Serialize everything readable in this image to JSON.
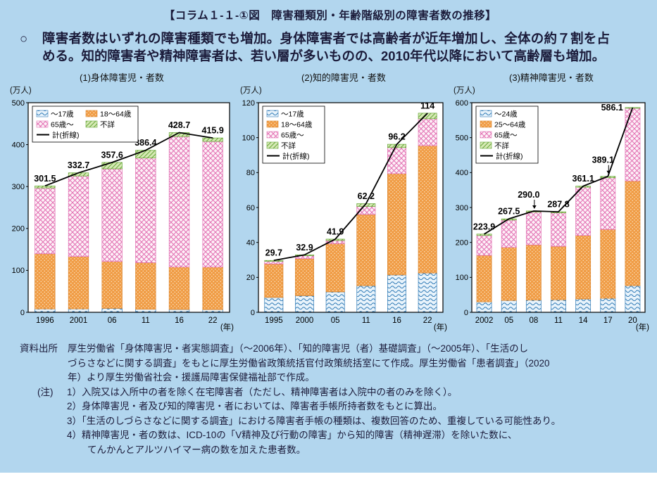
{
  "header": {
    "title": "【コラム１-１-①図　障害種類別・年齢階級別の障害者数の推移】"
  },
  "summary": {
    "bullet": "○",
    "text": "障害者数はいずれの障害種類でも増加。身体障害者では高齢者が近年増加し、全体の約７割を占める。知的障害者や精神障害者は、若い層が多いものの、2010年代以降において高齢層も増加。"
  },
  "palette": {
    "background": "#b2d6ee",
    "text": "#1b1b3a",
    "wave_bg": "#e8f3fb",
    "wave_fg": "#2f7ab6",
    "adult_bg": "#f09c45",
    "adult_fg": "#fbdfbb",
    "adult_edge": "#d9832a",
    "senior_bg": "#fdf1f8",
    "senior_fg": "#e26fb2",
    "unknown_bg": "#d6e9b5",
    "unknown_fg": "#66a738",
    "total_line": "#000000"
  },
  "chart_data": [
    {
      "type": "stacked-bar-line",
      "title": "(1)身体障害児・者数",
      "unit_label": "(万人)",
      "year_label": "(年)",
      "categories": [
        "1996",
        "2001",
        "06",
        "11",
        "16",
        "22"
      ],
      "ylim": [
        0,
        500
      ],
      "ytick_step": 100,
      "legend_columns": 2,
      "series": [
        {
          "name": "～17歳",
          "pattern": "wave",
          "values": [
            8.1,
            8.2,
            9.3,
            7.3,
            6.8,
            6.5
          ]
        },
        {
          "name": "18～64歳",
          "pattern": "dots",
          "values": [
            131.5,
            124.8,
            111.9,
            111.1,
            101.3,
            101.4
          ]
        },
        {
          "name": "65歳～",
          "pattern": "check",
          "values": [
            157.0,
            192.2,
            221.1,
            249.6,
            311.2,
            299.7
          ]
        },
        {
          "name": "不詳",
          "pattern": "hatch",
          "values": [
            4.9,
            7.5,
            15.3,
            18.4,
            9.4,
            8.3
          ]
        }
      ],
      "line": {
        "name": "計(折線)",
        "values": [
          301.5,
          332.7,
          357.6,
          386.4,
          428.7,
          415.9
        ],
        "labels": [
          "301.5",
          "332.7",
          "357.6",
          "386.4",
          "428.7",
          "415.9"
        ]
      }
    },
    {
      "type": "stacked-bar-line",
      "title": "(2)知的障害児・者数",
      "unit_label": "(万人)",
      "year_label": "(年)",
      "categories": [
        "1995",
        "2000",
        "05",
        "11",
        "16",
        "22"
      ],
      "ylim": [
        0,
        120
      ],
      "ytick_step": 20,
      "legend_columns": 1,
      "series": [
        {
          "name": "～17歳",
          "pattern": "wave",
          "values": [
            8.5,
            9.5,
            11.7,
            15.2,
            21.4,
            22.5
          ]
        },
        {
          "name": "18～64歳",
          "pattern": "dots",
          "values": [
            19.2,
            21.2,
            27.6,
            40.8,
            58.0,
            72.9
          ]
        },
        {
          "name": "65歳～",
          "pattern": "check",
          "values": [
            1.5,
            1.7,
            1.8,
            4.6,
            14.9,
            15.4
          ]
        },
        {
          "name": "不詳",
          "pattern": "hatch",
          "values": [
            0.5,
            0.5,
            0.8,
            1.6,
            1.9,
            3.2
          ]
        }
      ],
      "line": {
        "name": "計(折線)",
        "values": [
          29.7,
          32.9,
          41.9,
          62.2,
          96.2,
          114.0
        ],
        "labels": [
          "29.7",
          "32.9",
          "41.9",
          "62.2",
          "96.2",
          "114"
        ]
      }
    },
    {
      "type": "stacked-bar-line",
      "title": "(3)精神障害児・者数",
      "unit_label": "(万人)",
      "year_label": "(年)",
      "categories": [
        "2002",
        "05",
        "08",
        "11",
        "14",
        "17",
        "20"
      ],
      "ylim": [
        0,
        600
      ],
      "ytick_step": 100,
      "legend_columns": 1,
      "series": [
        {
          "name": "～24歳",
          "pattern": "wave",
          "values": [
            29.9,
            34.0,
            35.0,
            35.8,
            38.1,
            40.1,
            76.1
          ]
        },
        {
          "name": "25～64歳",
          "pattern": "dots",
          "values": [
            133.0,
            152.0,
            158.0,
            153.0,
            182.0,
            197.0,
            300.0
          ]
        },
        {
          "name": "65歳～",
          "pattern": "check",
          "values": [
            57.0,
            78.0,
            94.0,
            96.0,
            138.0,
            148.0,
            208.0
          ]
        },
        {
          "name": "不詳",
          "pattern": "hatch",
          "values": [
            4.0,
            3.5,
            3.0,
            3.0,
            3.0,
            4.0,
            2.0
          ]
        }
      ],
      "line": {
        "name": "計(折線)",
        "values": [
          223.9,
          267.5,
          290.0,
          287.8,
          361.1,
          389.1,
          586.1
        ],
        "labels": [
          "223.9",
          "267.5",
          "290.0",
          "287.8",
          "361.1",
          "389.1",
          "586.1"
        ]
      },
      "label_pos": [
        "above",
        "above",
        "arrow",
        "above",
        "above",
        "arrow",
        "left"
      ]
    }
  ],
  "source": {
    "label": "資料出所",
    "lines": [
      "厚生労働省「身体障害児・者実態調査」（～2006年）、「知的障害児（者）基礎調査」（～2005年）、「生活のし",
      "づらさなどに関する調査」をもとに厚生労働省政策統括官付政策統括室にて作成。厚生労働省「患者調査」（2020",
      "年）より厚生労働省社会・援護局障害保健福祉部で作成。"
    ]
  },
  "notes": {
    "label": "(注)",
    "items": [
      "1）入院又は入所中の者を除く在宅障害者（ただし、精神障害者は入院中の者のみを除く）。",
      "2）身体障害児・者及び知的障害児・者においては、障害者手帳所持者数をもとに算出。",
      "3）「生活のしづらさなどに関する調査」における障害者手帳の種類は、複数回答のため、重複している可能性あり。",
      "4）精神障害児・者の数は、ICD-10の「V精神及び行動の障害」から知的障害（精神遅滞）を除いた数に、",
      "てんかんとアルツハイマー病の数を加えた患者数。"
    ]
  }
}
